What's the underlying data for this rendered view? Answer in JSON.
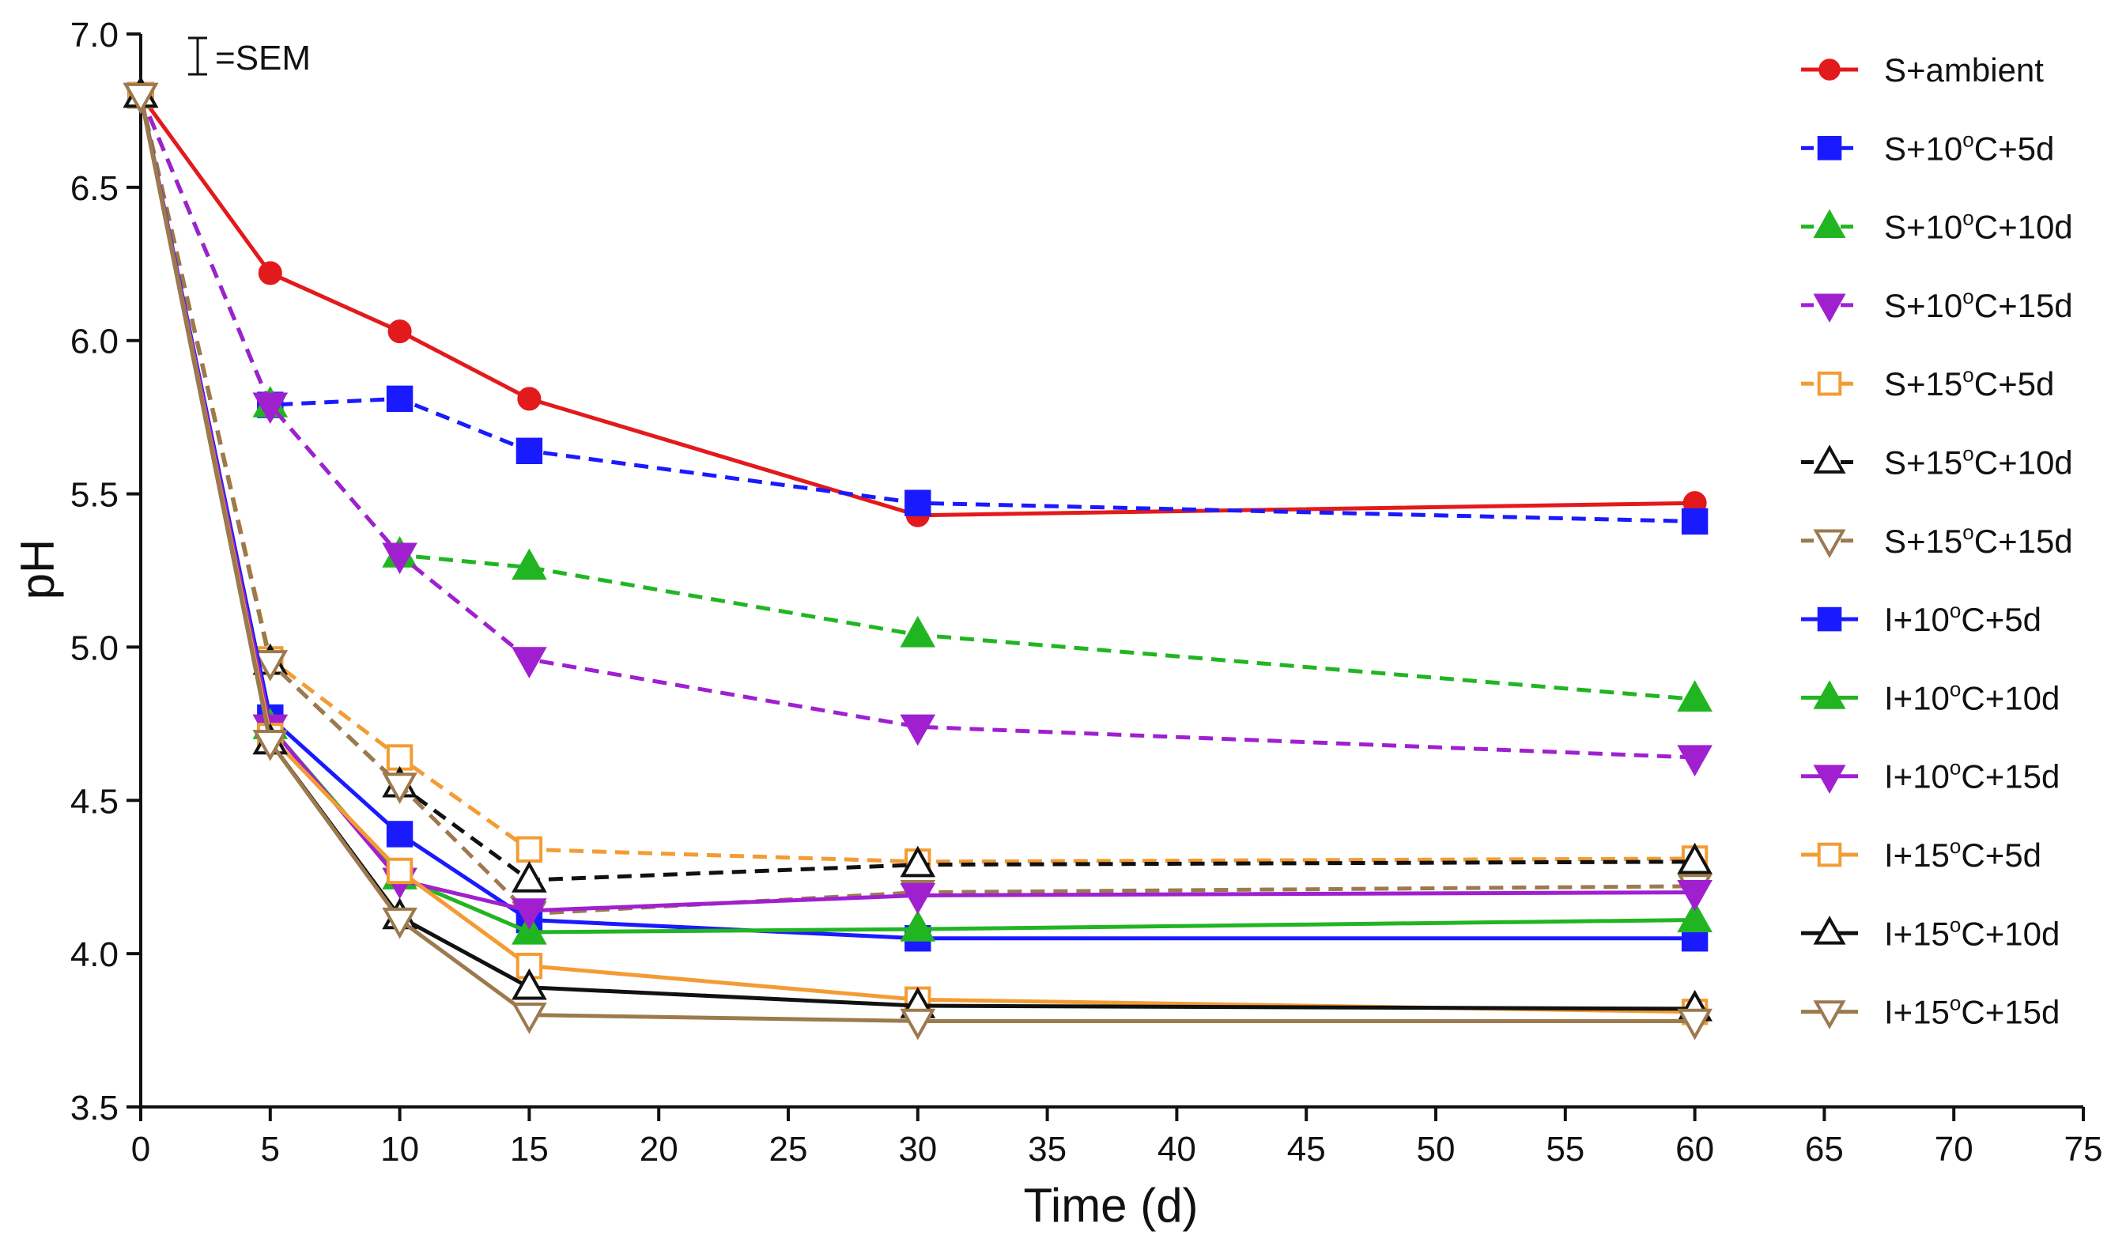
{
  "chart_data": {
    "type": "line",
    "title": "",
    "xlabel": "Time (d)",
    "ylabel": "pH",
    "xlim": [
      0,
      75
    ],
    "ylim": [
      3.5,
      7.0
    ],
    "x_ticks": [
      0,
      5,
      10,
      15,
      20,
      25,
      30,
      35,
      40,
      45,
      50,
      55,
      60,
      65,
      70,
      75
    ],
    "y_ticks": [
      "3.5",
      "4.0",
      "4.5",
      "5.0",
      "5.5",
      "6.0",
      "6.5",
      "7.0"
    ],
    "grid": false,
    "legend_position": "right",
    "error_bar_note": "=SEM",
    "x": [
      0,
      5,
      10,
      15,
      30,
      60
    ],
    "series": [
      {
        "name": "S+ambient",
        "label_main": "S+ambient",
        "label_sup": "",
        "label_end": "",
        "color": "#e31a1c",
        "dash": "solid",
        "marker": "circle",
        "filled": true,
        "values": [
          6.8,
          6.22,
          6.03,
          5.81,
          5.43,
          5.47
        ]
      },
      {
        "name": "S+10°C+5d",
        "label_main": "S+10",
        "label_sup": "o",
        "label_end": "C+5d",
        "color": "#1a1aff",
        "dash": "dashed",
        "marker": "square",
        "filled": true,
        "values": [
          6.8,
          5.79,
          5.81,
          5.64,
          5.47,
          5.41
        ]
      },
      {
        "name": "S+10°C+10d",
        "label_main": "S+10",
        "label_sup": "o",
        "label_end": "C+10d",
        "color": "#22b522",
        "dash": "dashed",
        "marker": "triangle-up",
        "filled": true,
        "values": [
          6.8,
          5.79,
          5.3,
          5.26,
          5.04,
          4.83
        ]
      },
      {
        "name": "S+10°C+15d",
        "label_main": "S+10",
        "label_sup": "o",
        "label_end": "C+15d",
        "color": "#a020d0",
        "dash": "dashed",
        "marker": "triangle-down",
        "filled": true,
        "values": [
          6.8,
          5.79,
          5.3,
          4.96,
          4.74,
          4.64
        ]
      },
      {
        "name": "S+15°C+5d",
        "label_main": "S+15",
        "label_sup": "o",
        "label_end": "C+5d",
        "color": "#f39c34",
        "dash": "dashed",
        "marker": "square",
        "filled": false,
        "values": [
          6.8,
          4.96,
          4.64,
          4.34,
          4.3,
          4.31
        ]
      },
      {
        "name": "S+15°C+10d",
        "label_main": "S+15",
        "label_sup": "o",
        "label_end": "C+10d",
        "color": "#111111",
        "dash": "dashed",
        "marker": "triangle-up",
        "filled": false,
        "values": [
          6.8,
          4.95,
          4.55,
          4.24,
          4.29,
          4.3
        ]
      },
      {
        "name": "S+15°C+15d",
        "label_main": "S+15",
        "label_sup": "o",
        "label_end": "C+15d",
        "color": "#9c7a4e",
        "dash": "dashed",
        "marker": "triangle-down",
        "filled": false,
        "values": [
          6.8,
          4.95,
          4.55,
          4.13,
          4.2,
          4.22
        ]
      },
      {
        "name": "I+10°C+5d",
        "label_main": "I+10",
        "label_sup": "o",
        "label_end": "C+5d",
        "color": "#1a1aff",
        "dash": "solid",
        "marker": "square",
        "filled": true,
        "values": [
          6.8,
          4.77,
          4.39,
          4.11,
          4.05,
          4.05
        ]
      },
      {
        "name": "I+10°C+10d",
        "label_main": "I+10",
        "label_sup": "o",
        "label_end": "C+10d",
        "color": "#22b522",
        "dash": "solid",
        "marker": "triangle-up",
        "filled": true,
        "values": [
          6.8,
          4.74,
          4.25,
          4.07,
          4.08,
          4.11
        ]
      },
      {
        "name": "I+10°C+15d",
        "label_main": "I+10",
        "label_sup": "o",
        "label_end": "C+15d",
        "color": "#a020d0",
        "dash": "solid",
        "marker": "triangle-down",
        "filled": true,
        "values": [
          6.8,
          4.74,
          4.24,
          4.14,
          4.19,
          4.2
        ]
      },
      {
        "name": "I+15°C+5d",
        "label_main": "I+15",
        "label_sup": "o",
        "label_end": "C+5d",
        "color": "#f39c34",
        "dash": "solid",
        "marker": "square",
        "filled": false,
        "values": [
          6.8,
          4.71,
          4.27,
          3.96,
          3.85,
          3.81
        ]
      },
      {
        "name": "I+15°C+10d",
        "label_main": "I+15",
        "label_sup": "o",
        "label_end": "C+10d",
        "color": "#111111",
        "dash": "solid",
        "marker": "triangle-up",
        "filled": false,
        "values": [
          6.8,
          4.69,
          4.12,
          3.89,
          3.83,
          3.82
        ]
      },
      {
        "name": "I+15°C+15d",
        "label_main": "I+15",
        "label_sup": "o",
        "label_end": "C+15d",
        "color": "#9c7a4e",
        "dash": "solid",
        "marker": "triangle-down",
        "filled": false,
        "values": [
          6.8,
          4.69,
          4.11,
          3.8,
          3.78,
          3.78
        ]
      }
    ]
  }
}
